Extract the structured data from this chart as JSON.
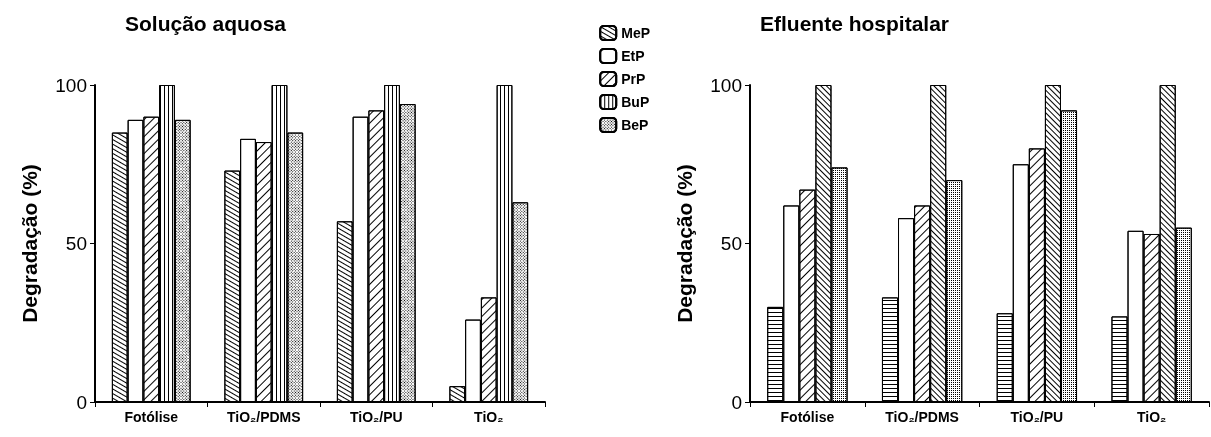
{
  "chart_data": [
    {
      "type": "bar",
      "title": "Solução aquosa",
      "ylabel": "Degradação (%)",
      "categories": [
        "Fotólise",
        "TiO₂/PDMS",
        "TiO₂/PU",
        "TiO₂"
      ],
      "ylim": [
        0,
        100
      ],
      "yticks": [
        0,
        50,
        100
      ],
      "grid": false,
      "legend": "right",
      "series": [
        {
          "name": "MeP",
          "color": "#ffffff",
          "values": [
            85,
            73,
            57,
            5
          ]
        },
        {
          "name": "EtP",
          "color": "#ffffff",
          "values": [
            89,
            83,
            90,
            26
          ]
        },
        {
          "name": "PrP",
          "color": "#ffffff",
          "values": [
            90,
            82,
            92,
            33
          ]
        },
        {
          "name": "BuP",
          "color": "#ffffff",
          "values": [
            100,
            100,
            100,
            100
          ]
        },
        {
          "name": "BeP",
          "color": "#ffffff",
          "values": [
            89,
            85,
            94,
            63
          ]
        }
      ]
    },
    {
      "type": "bar",
      "title": "Efluente hospitalar",
      "ylabel": "Degradação (%)",
      "categories": [
        "Fotólise",
        "TiO₂/PDMS",
        "TiO₂/PU",
        "TiO₂"
      ],
      "ylim": [
        0,
        100
      ],
      "yticks": [
        0,
        50,
        100
      ],
      "grid": false,
      "series": [
        {
          "color": "#ffffff",
          "values": [
            30,
            33,
            28,
            27
          ]
        },
        {
          "color": "#ffffff",
          "values": [
            62,
            58,
            75,
            54
          ]
        },
        {
          "color": "#ffffff",
          "values": [
            67,
            62,
            80,
            53
          ]
        },
        {
          "color": "#ffffff",
          "values": [
            100,
            100,
            100,
            100
          ]
        },
        {
          "color": "#ffffff",
          "values": [
            74,
            70,
            92,
            55
          ]
        }
      ]
    }
  ]
}
